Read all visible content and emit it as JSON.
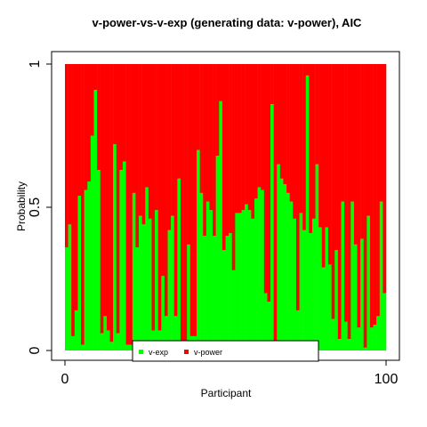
{
  "chart_data": {
    "type": "bar",
    "stacked": true,
    "title": "v-power-vs-v-exp (generating data: v-power), AIC",
    "xlabel": "Participant",
    "ylabel": "Probability",
    "xlim": [
      1,
      100
    ],
    "ylim": [
      0,
      1
    ],
    "xticks": [
      {
        "value": 0,
        "label": "0"
      },
      {
        "value": 100,
        "label": "100"
      }
    ],
    "yticks": [
      {
        "value": 0,
        "label": "0"
      },
      {
        "value": 0.5,
        "label": "0.5"
      },
      {
        "value": 1,
        "label": "1"
      }
    ],
    "legend": {
      "position": "bottom",
      "entries": [
        {
          "name": "v-exp",
          "color": "#00ff00"
        },
        {
          "name": "v-power",
          "color": "#ff0000"
        }
      ]
    },
    "series": [
      {
        "name": "v-exp",
        "color": "#00ff00",
        "values": [
          0.36,
          0.44,
          0.05,
          0.14,
          0.54,
          0.02,
          0.56,
          0.59,
          0.75,
          0.91,
          0.63,
          0.06,
          0.12,
          0.07,
          0.03,
          0.72,
          0.06,
          0.63,
          0.66,
          0.02,
          0.02,
          0.55,
          0.36,
          0.47,
          0.44,
          0.57,
          0.46,
          0.07,
          0.49,
          0.07,
          0.26,
          0.12,
          0.42,
          0.47,
          0.12,
          0.6,
          0.03,
          0.02,
          0.37,
          0.05,
          0.05,
          0.7,
          0.55,
          0.4,
          0.52,
          0.49,
          0.4,
          0.68,
          0.87,
          0.35,
          0.4,
          0.41,
          0.28,
          0.48,
          0.48,
          0.49,
          0.51,
          0.49,
          0.46,
          0.53,
          0.57,
          0.56,
          0.2,
          0.17,
          0.86,
          0.03,
          0.65,
          0.6,
          0.58,
          0.55,
          0.52,
          0.46,
          0.14,
          0.48,
          0.42,
          0.96,
          0.41,
          0.46,
          0.65,
          0.43,
          0.29,
          0.43,
          0.3,
          0.11,
          0.35,
          0.04,
          0.52,
          0.1,
          0.04,
          0.52,
          0.37,
          0.08,
          0.39,
          0.01,
          0.47,
          0.08,
          0.09,
          0.12,
          0.52,
          0.2
        ]
      },
      {
        "name": "v-power",
        "color": "#ff0000",
        "values": [
          0.64,
          0.56,
          0.95,
          0.86,
          0.46,
          0.98,
          0.44,
          0.41,
          0.25,
          0.09,
          0.37,
          0.94,
          0.88,
          0.93,
          0.97,
          0.28,
          0.94,
          0.37,
          0.34,
          0.98,
          0.98,
          0.45,
          0.64,
          0.53,
          0.56,
          0.43,
          0.54,
          0.93,
          0.51,
          0.93,
          0.74,
          0.88,
          0.58,
          0.53,
          0.88,
          0.4,
          0.97,
          0.98,
          0.63,
          0.95,
          0.95,
          0.3,
          0.45,
          0.6,
          0.48,
          0.51,
          0.6,
          0.32,
          0.13,
          0.65,
          0.6,
          0.59,
          0.72,
          0.52,
          0.52,
          0.51,
          0.49,
          0.51,
          0.54,
          0.47,
          0.43,
          0.44,
          0.8,
          0.83,
          0.14,
          0.97,
          0.35,
          0.4,
          0.42,
          0.45,
          0.48,
          0.54,
          0.86,
          0.52,
          0.58,
          0.04,
          0.59,
          0.54,
          0.35,
          0.57,
          0.71,
          0.57,
          0.7,
          0.89,
          0.65,
          0.96,
          0.48,
          0.9,
          0.96,
          0.48,
          0.63,
          0.92,
          0.61,
          0.99,
          0.53,
          0.92,
          0.91,
          0.88,
          0.48,
          0.8
        ]
      }
    ]
  }
}
